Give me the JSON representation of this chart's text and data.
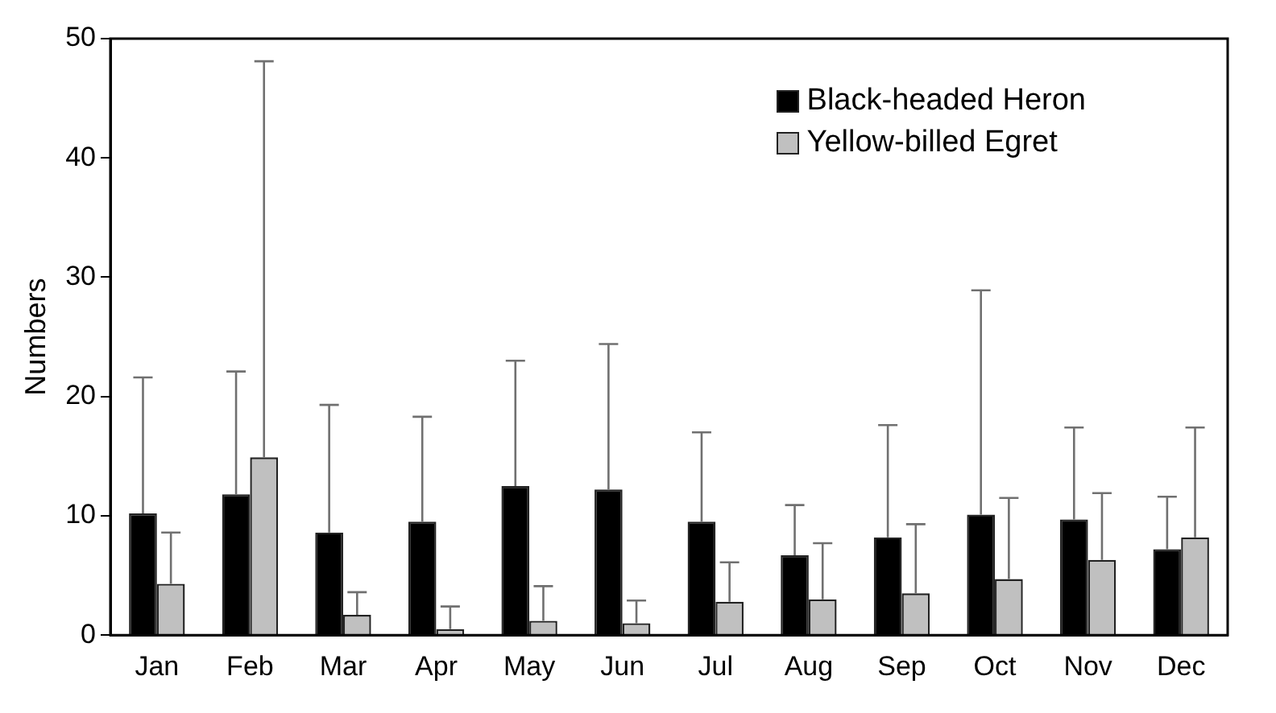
{
  "chart_data": {
    "type": "bar",
    "ylabel": "Numbers",
    "categories": [
      "Jan",
      "Feb",
      "Mar",
      "Apr",
      "May",
      "Jun",
      "Jul",
      "Aug",
      "Sep",
      "Oct",
      "Nov",
      "Dec"
    ],
    "series": [
      {
        "name": "Black-headed Heron",
        "color": "#000000",
        "values": [
          10.2,
          11.8,
          8.6,
          9.5,
          12.5,
          12.2,
          9.5,
          6.7,
          8.2,
          10.1,
          9.7,
          7.2
        ],
        "errors": [
          [
            10.2,
            21.6
          ],
          [
            11.8,
            22.1
          ],
          [
            8.6,
            19.3
          ],
          [
            9.5,
            18.3
          ],
          [
            12.5,
            23.0
          ],
          [
            12.2,
            24.4
          ],
          [
            9.5,
            17.0
          ],
          [
            6.7,
            10.9
          ],
          [
            8.2,
            17.6
          ],
          [
            10.1,
            28.9
          ],
          [
            9.7,
            17.4
          ],
          [
            7.2,
            11.6
          ]
        ]
      },
      {
        "name": "Yellow-billed Egret",
        "color": "#c0c0c0",
        "values": [
          4.3,
          14.9,
          1.7,
          0.5,
          1.2,
          1.0,
          2.8,
          3.0,
          3.5,
          4.7,
          6.3,
          8.2
        ],
        "errors": [
          [
            4.3,
            8.6
          ],
          [
            14.9,
            48.1
          ],
          [
            1.7,
            3.6
          ],
          [
            0.5,
            2.4
          ],
          [
            1.2,
            4.1
          ],
          [
            1.0,
            2.9
          ],
          [
            2.8,
            6.1
          ],
          [
            3.0,
            7.7
          ],
          [
            3.5,
            9.3
          ],
          [
            4.7,
            11.5
          ],
          [
            6.3,
            11.9
          ],
          [
            8.2,
            17.4
          ]
        ]
      }
    ],
    "ylim": [
      0,
      50
    ],
    "yticks": [
      0,
      10,
      20,
      30,
      40,
      50
    ],
    "grid": false,
    "legend": "top right"
  }
}
